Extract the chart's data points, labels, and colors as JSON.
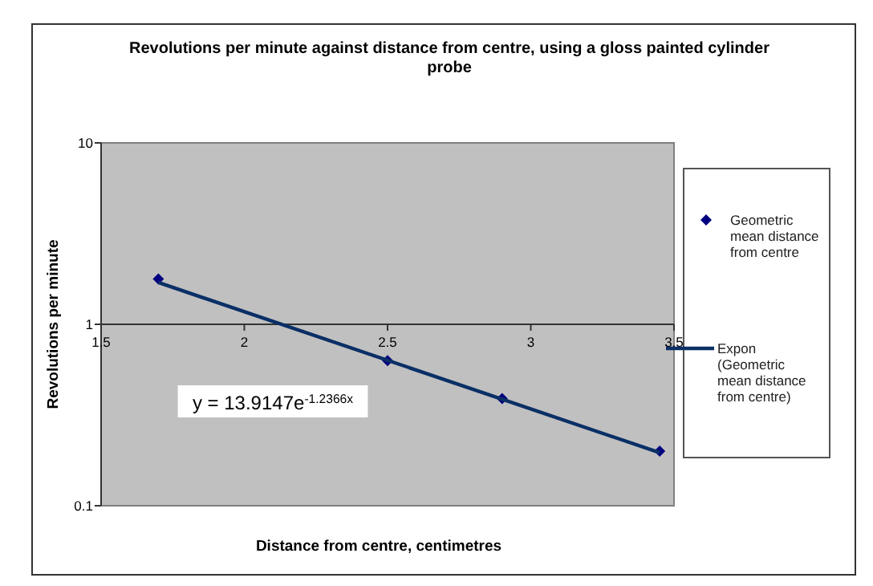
{
  "chart_data": {
    "type": "scatter",
    "title": "Revolutions per minute against distance from centre, using a gloss painted cylinder probe",
    "xlabel": "Distance from centre, centimetres",
    "ylabel": "Revolutions per minute",
    "x": [
      1.7,
      2.5,
      2.9,
      3.45
    ],
    "series": [
      {
        "name": "Geometric mean distance from centre",
        "color": "#000080",
        "values": [
          1.78,
          0.63,
          0.39,
          0.2
        ],
        "marker": "diamond"
      },
      {
        "name": "Expon (Geometric mean distance from centre)",
        "type": "line",
        "color": "#0a2f66",
        "x": [
          1.7,
          3.45
        ],
        "values": [
          1.7,
          0.196
        ],
        "marker": "none"
      }
    ],
    "annotations": [
      "y = 13.9147e$^{-1.2366x}$"
    ],
    "log": "y",
    "xlim": [
      1.5,
      3.5
    ],
    "xticks": [
      1.5,
      2,
      2.5,
      3,
      3.5
    ],
    "ylim": [
      0.1,
      10
    ],
    "yticks": [
      0.1,
      1,
      10
    ],
    "legend": "right"
  }
}
